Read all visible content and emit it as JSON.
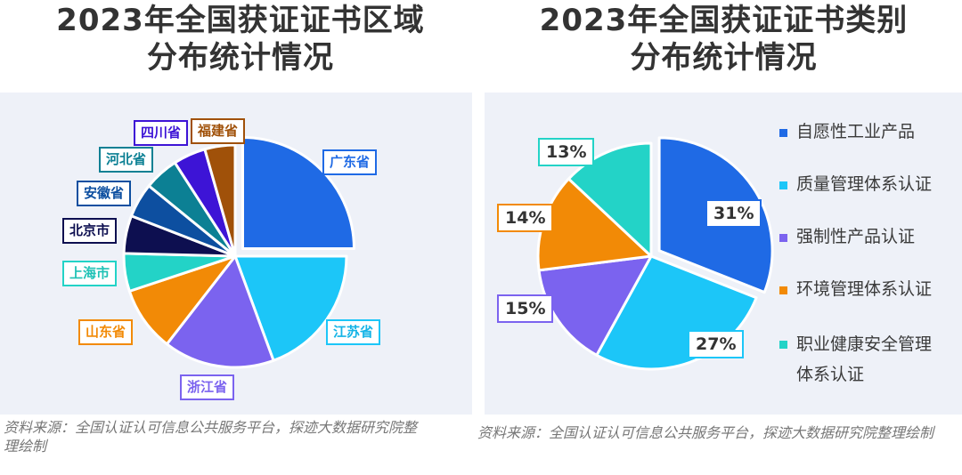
{
  "left": {
    "title_line1": "2023年全国获证证书区域",
    "title_line2": "分布统计情况",
    "source": "资料来源：全国认证认可信息公共服务平台，探迹大数据研究院整理绘制"
  },
  "right": {
    "title_line1": "2023年全国获证证书类别",
    "title_line2": "分布统计情况",
    "source": "资料来源：全国认证认可信息公共服务平台，探迹大数据研究院整理绘制"
  },
  "chart_data": [
    {
      "type": "pie",
      "title": "2023年全国获证证书区域分布统计情况",
      "note": "no values printed; shares estimated from slice angles",
      "exploded": [
        "广东省"
      ],
      "slices": [
        {
          "label": "广东省",
          "value": 25.0,
          "color": "#1f6ae5"
        },
        {
          "label": "江苏省",
          "value": 19.4,
          "color": "#1cc6f8"
        },
        {
          "label": "浙江省",
          "value": 16.1,
          "color": "#7b63ef"
        },
        {
          "label": "山东省",
          "value": 9.4,
          "color": "#f28a06"
        },
        {
          "label": "上海市",
          "value": 5.5,
          "color": "#23d3c7"
        },
        {
          "label": "北京市",
          "value": 5.5,
          "color": "#0d0f50"
        },
        {
          "label": "安徽省",
          "value": 5.0,
          "color": "#0d4fa0"
        },
        {
          "label": "河北省",
          "value": 5.0,
          "color": "#0c8094"
        },
        {
          "label": "四川省",
          "value": 4.7,
          "color": "#3d14d6"
        },
        {
          "label": "福建省",
          "value": 4.4,
          "color": "#a05109"
        }
      ]
    },
    {
      "type": "pie",
      "title": "2023年全国获证证书类别分布统计情况",
      "exploded": [
        "自愿性工业产品"
      ],
      "slices": [
        {
          "label": "自愿性工业产品",
          "value": 31,
          "display": "31%",
          "color": "#1f6ae5"
        },
        {
          "label": "质量管理体系认证",
          "value": 27,
          "display": "27%",
          "color": "#1cc6f8"
        },
        {
          "label": "强制性产品认证",
          "value": 15,
          "display": "15%",
          "color": "#7b63ef"
        },
        {
          "label": "环境管理体系认证",
          "value": 14,
          "display": "14%",
          "color": "#f28a06"
        },
        {
          "label": "职业健康安全管理体系认证",
          "value": 13,
          "display": "13%",
          "color": "#23d3c7"
        }
      ]
    }
  ],
  "legend": [
    {
      "text": "自愿性工业产品",
      "color": "#1f6ae5"
    },
    {
      "text": "质量管理体系认证",
      "color": "#1cc6f8"
    },
    {
      "text": "强制性产品认证",
      "color": "#7b63ef"
    },
    {
      "text": "环境管理体系认证",
      "color": "#f28a06"
    },
    {
      "text_line1": "职业健康安全管理",
      "text_line2": "体系认证",
      "color": "#23d3c7"
    }
  ]
}
